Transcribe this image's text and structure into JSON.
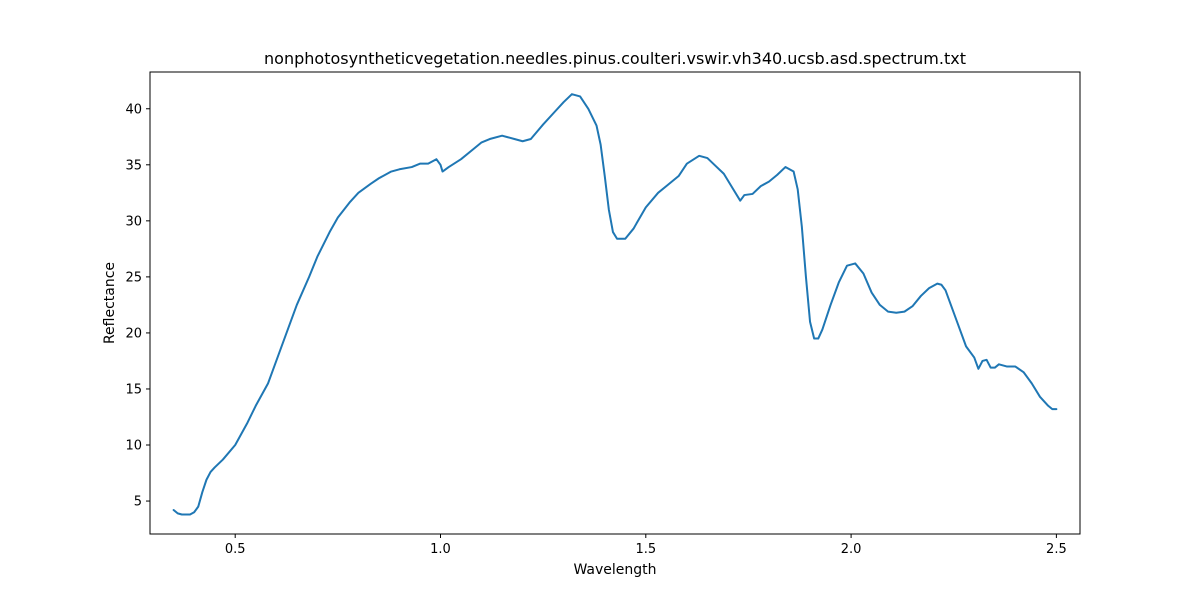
{
  "chart_data": {
    "type": "line",
    "title": "nonphotosyntheticvegetation.needles.pinus.coulteri.vswir.vh340.ucsb.asd.spectrum.txt",
    "xlabel": "Wavelength",
    "ylabel": "Reflectance",
    "xlim": [
      0.2925,
      2.5575
    ],
    "ylim": [
      2.06,
      43.28
    ],
    "xticks": [
      0.5,
      1.0,
      1.5,
      2.0,
      2.5
    ],
    "xtick_labels": [
      "0.5",
      "1.0",
      "1.5",
      "2.0",
      "2.5"
    ],
    "yticks": [
      5,
      10,
      15,
      20,
      25,
      30,
      35,
      40
    ],
    "ytick_labels": [
      "5",
      "10",
      "15",
      "20",
      "25",
      "30",
      "35",
      "40"
    ],
    "grid": false,
    "series": [
      {
        "name": "spectrum",
        "color": "#1f77b4",
        "x": [
          0.35,
          0.36,
          0.37,
          0.38,
          0.39,
          0.4,
          0.41,
          0.42,
          0.43,
          0.44,
          0.45,
          0.47,
          0.5,
          0.53,
          0.55,
          0.58,
          0.6,
          0.63,
          0.65,
          0.68,
          0.7,
          0.73,
          0.75,
          0.78,
          0.8,
          0.83,
          0.85,
          0.88,
          0.9,
          0.93,
          0.95,
          0.97,
          0.99,
          1.0,
          1.005,
          1.02,
          1.05,
          1.08,
          1.1,
          1.12,
          1.15,
          1.18,
          1.2,
          1.22,
          1.25,
          1.28,
          1.3,
          1.32,
          1.34,
          1.36,
          1.38,
          1.39,
          1.4,
          1.41,
          1.42,
          1.43,
          1.45,
          1.47,
          1.5,
          1.53,
          1.55,
          1.58,
          1.6,
          1.63,
          1.65,
          1.67,
          1.69,
          1.71,
          1.73,
          1.74,
          1.76,
          1.78,
          1.8,
          1.82,
          1.84,
          1.86,
          1.87,
          1.88,
          1.89,
          1.9,
          1.91,
          1.92,
          1.93,
          1.95,
          1.97,
          1.99,
          2.01,
          2.03,
          2.05,
          2.07,
          2.09,
          2.11,
          2.13,
          2.15,
          2.17,
          2.19,
          2.21,
          2.22,
          2.23,
          2.24,
          2.26,
          2.28,
          2.3,
          2.31,
          2.32,
          2.33,
          2.34,
          2.35,
          2.36,
          2.38,
          2.4,
          2.42,
          2.44,
          2.46,
          2.48,
          2.49,
          2.5
        ],
        "values": [
          4.2,
          3.9,
          3.8,
          3.8,
          3.8,
          4.0,
          4.5,
          5.8,
          6.9,
          7.6,
          8.0,
          8.7,
          10.0,
          12.0,
          13.5,
          15.5,
          17.5,
          20.5,
          22.5,
          25.0,
          26.8,
          29.0,
          30.3,
          31.7,
          32.5,
          33.3,
          33.8,
          34.4,
          34.6,
          34.8,
          35.1,
          35.1,
          35.5,
          35.0,
          34.4,
          34.8,
          35.5,
          36.4,
          37.0,
          37.3,
          37.6,
          37.3,
          37.1,
          37.3,
          38.6,
          39.8,
          40.6,
          41.3,
          41.1,
          40.0,
          38.5,
          36.8,
          34.0,
          31.0,
          29.0,
          28.4,
          28.4,
          29.3,
          31.2,
          32.5,
          33.1,
          34.0,
          35.1,
          35.8,
          35.6,
          34.9,
          34.2,
          33.0,
          31.8,
          32.3,
          32.4,
          33.1,
          33.5,
          34.1,
          34.8,
          34.4,
          32.8,
          29.5,
          25.0,
          21.0,
          19.5,
          19.5,
          20.3,
          22.5,
          24.5,
          26.0,
          26.2,
          25.3,
          23.6,
          22.5,
          21.9,
          21.8,
          21.9,
          22.4,
          23.3,
          24.0,
          24.4,
          24.3,
          23.8,
          22.8,
          20.8,
          18.8,
          17.8,
          16.8,
          17.5,
          17.6,
          16.9,
          16.9,
          17.2,
          17.0,
          17.0,
          16.5,
          15.5,
          14.3,
          13.5,
          13.2,
          13.2
        ]
      }
    ]
  }
}
